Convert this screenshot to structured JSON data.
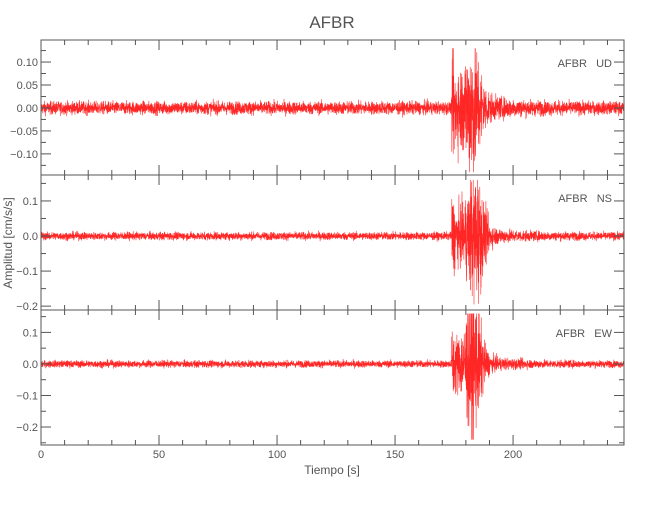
{
  "chart_data": {
    "type": "line",
    "title": "AFBR",
    "xlabel": "Tiempo [s]",
    "ylabel": "Amplitud [cm/s/s]",
    "xlim": [
      0,
      247
    ],
    "xticks": [
      0,
      50,
      100,
      150,
      200
    ],
    "line_color": "#ff0000",
    "axis_color": "#555555",
    "grid": false,
    "panels": [
      {
        "label": "AFBR   UD",
        "ylim": [
          -0.146,
          0.148
        ],
        "yticks": [
          0.1,
          0.05,
          0.0,
          -0.05,
          -0.1
        ],
        "ytick_labels": [
          "0.10",
          "0.05",
          "0.00",
          "−0.05",
          "−0.10"
        ],
        "minor_step": 0.025,
        "noise_amplitude": 0.01,
        "event_onset": 174,
        "event_peak_time": 183,
        "peak_positive": 0.13,
        "peak_negative": -0.14,
        "coda_end": 205
      },
      {
        "label": "AFBR   NS",
        "ylim": [
          -0.211,
          0.174
        ],
        "yticks": [
          0.1,
          0.0,
          -0.1,
          -0.2
        ],
        "ytick_labels": [
          "0.1",
          "0.0",
          "−0.1",
          "−0.2"
        ],
        "minor_step": 0.05,
        "noise_amplitude": 0.008,
        "event_onset": 174,
        "event_peak_time": 184,
        "peak_positive": 0.16,
        "peak_negative": -0.2,
        "coda_end": 205
      },
      {
        "label": "AFBR   EW",
        "ylim": [
          -0.257,
          0.171
        ],
        "yticks": [
          0.1,
          0.0,
          -0.1,
          -0.2
        ],
        "ytick_labels": [
          "0.1",
          "0.0",
          "−0.1",
          "−0.2"
        ],
        "minor_step": 0.05,
        "noise_amplitude": 0.008,
        "event_onset": 174,
        "event_peak_time": 183,
        "peak_positive": 0.16,
        "peak_negative": -0.24,
        "coda_end": 205
      }
    ]
  }
}
